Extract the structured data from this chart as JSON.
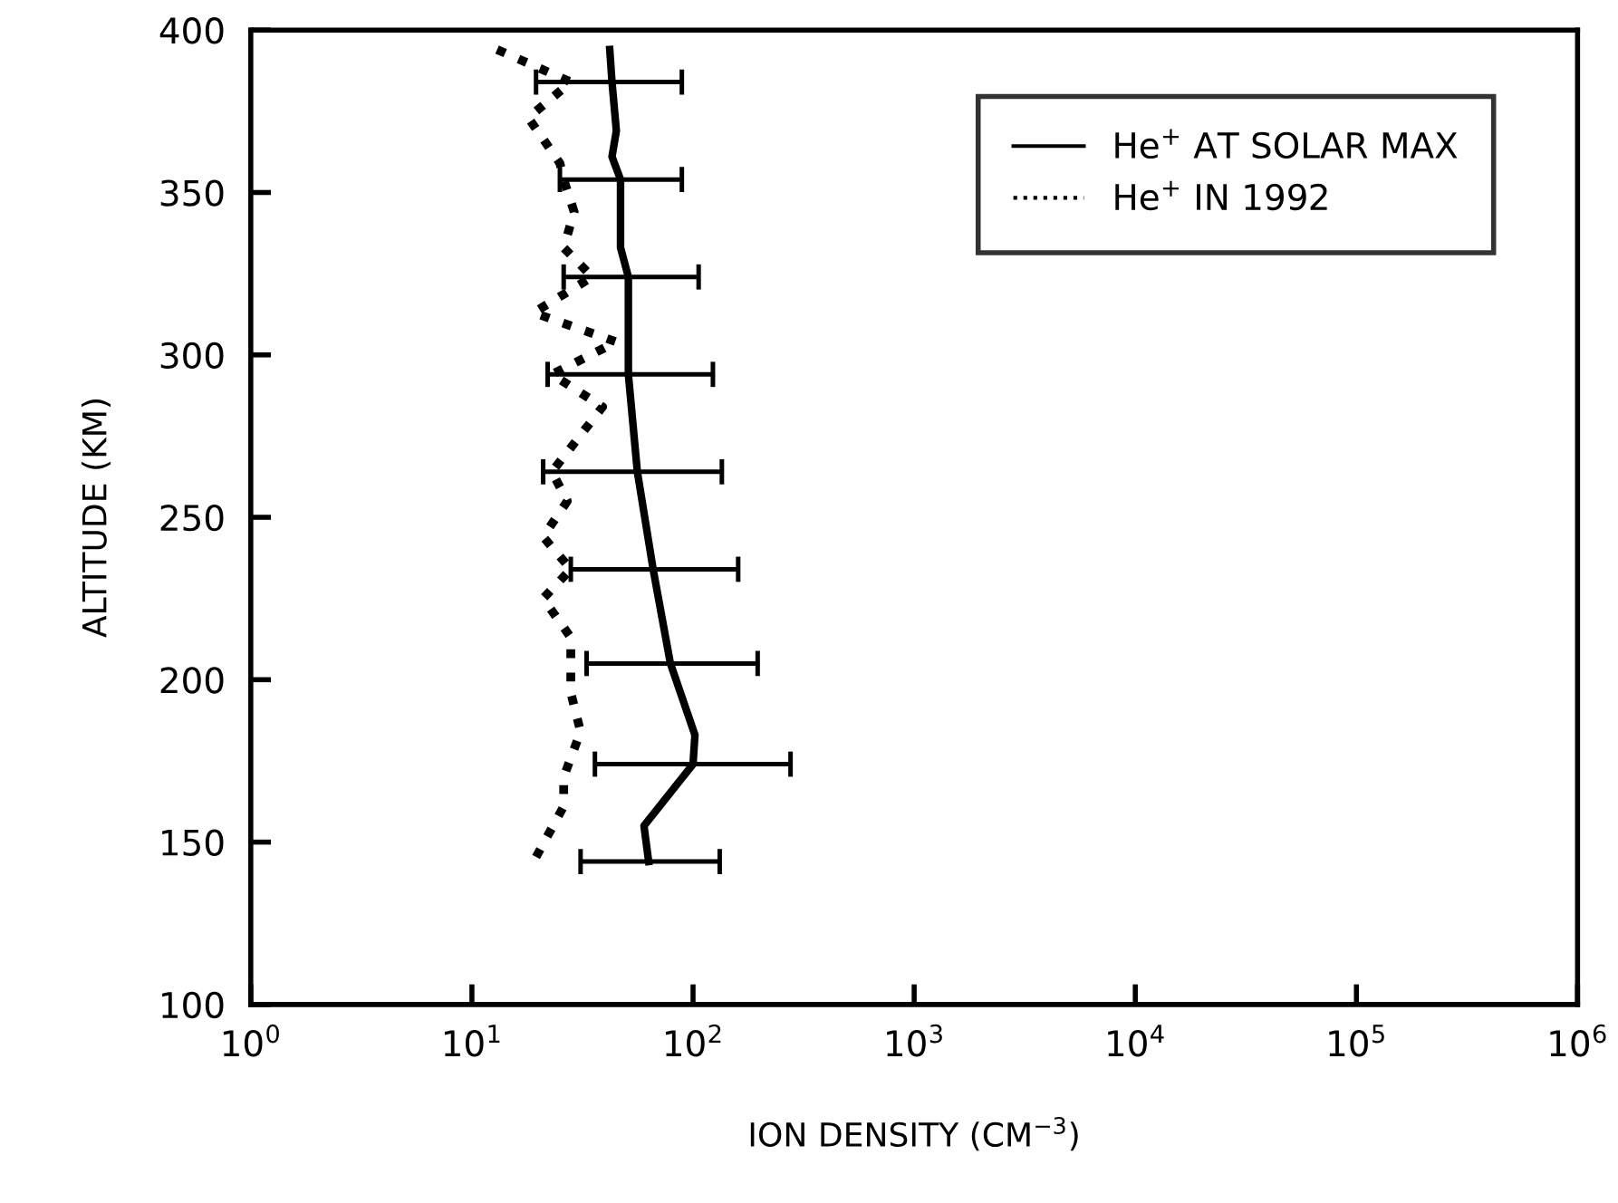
{
  "chart_data": {
    "type": "line",
    "xlabel": "ION DENSITY (CM$^{−3}$)",
    "ylabel": "ALTITUDE (KM)",
    "log": "x",
    "xlim": [
      1,
      1000000
    ],
    "xticks": [
      {
        "value": 1,
        "label": "10$^{0}$"
      },
      {
        "value": 10,
        "label": "10$^{1}$"
      },
      {
        "value": 100,
        "label": "10$^{2}$"
      },
      {
        "value": 1000,
        "label": "10$^{3}$"
      },
      {
        "value": 10000,
        "label": "10$^{4}$"
      },
      {
        "value": 100000,
        "label": "10$^{5}$"
      },
      {
        "value": 1000000,
        "label": "10$^{6}$"
      }
    ],
    "ylim": [
      100,
      400
    ],
    "yticks": [
      100,
      150,
      200,
      250,
      300,
      350,
      400
    ],
    "grid": false,
    "legend": "top right",
    "marker": "none",
    "series": [
      {
        "name": "He$^{+}$ AT SOLAR MAX",
        "color": "#000000",
        "line_style": "solid",
        "x": [
          42,
          43,
          45,
          43,
          47,
          47,
          51,
          51,
          56,
          66,
          79,
          102,
          100,
          60,
          63
        ],
        "values": [
          394,
          384,
          369,
          361,
          354,
          333,
          324,
          294,
          264,
          234,
          205,
          183,
          174,
          155,
          144
        ],
        "xerrors": [
          null,
          [
            19.5,
            89
          ],
          null,
          null,
          [
            25,
            89
          ],
          null,
          [
            26,
            106
          ],
          [
            22,
            123
          ],
          [
            21,
            135
          ],
          [
            28,
            160
          ],
          [
            33,
            196
          ],
          null,
          [
            36,
            276
          ],
          null,
          [
            31,
            132
          ]
        ]
      },
      {
        "name": "He$^{+}$ IN 1992",
        "color": "#000000",
        "line_style": "dotted",
        "x": [
          13,
          28,
          18,
          25,
          26,
          29,
          26,
          35,
          19,
          45,
          23,
          39,
          23,
          27,
          21,
          28,
          21,
          28,
          28,
          31,
          26,
          26,
          19
        ],
        "values": [
          394,
          384,
          373,
          359,
          354,
          344,
          333,
          324,
          313,
          304,
          294,
          284,
          264,
          255,
          244,
          234,
          225,
          213,
          196,
          184,
          170,
          161,
          144
        ]
      }
    ]
  }
}
